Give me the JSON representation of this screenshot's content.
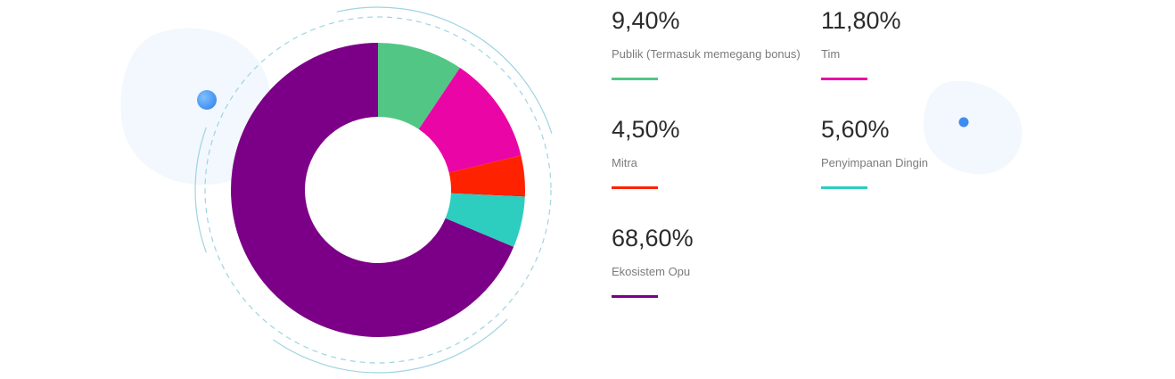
{
  "chart_data": {
    "type": "pie",
    "donut": true,
    "title": "",
    "slices": [
      {
        "label": "Publik (Termasuk memegang bonus)",
        "value": 9.4,
        "value_label": "9,40%",
        "color": "#52c785"
      },
      {
        "label": "Tim",
        "value": 11.8,
        "value_label": "11,80%",
        "color": "#ea05a6"
      },
      {
        "label": "Mitra",
        "value": 4.5,
        "value_label": "4,50%",
        "color": "#ff2200"
      },
      {
        "label": "Penyimpanan Dingin",
        "value": 5.6,
        "value_label": "5,60%",
        "color": "#2dcdc0"
      },
      {
        "label": "Ekosistem Opu",
        "value": 68.6,
        "value_label": "68,60%",
        "color": "#7c0087"
      }
    ],
    "legend": {
      "placement": "right",
      "columns": 2
    }
  },
  "colors": {
    "ring": "#9fd4e2",
    "blob": "#f2f8fd",
    "dot": "#3f8cf0"
  }
}
